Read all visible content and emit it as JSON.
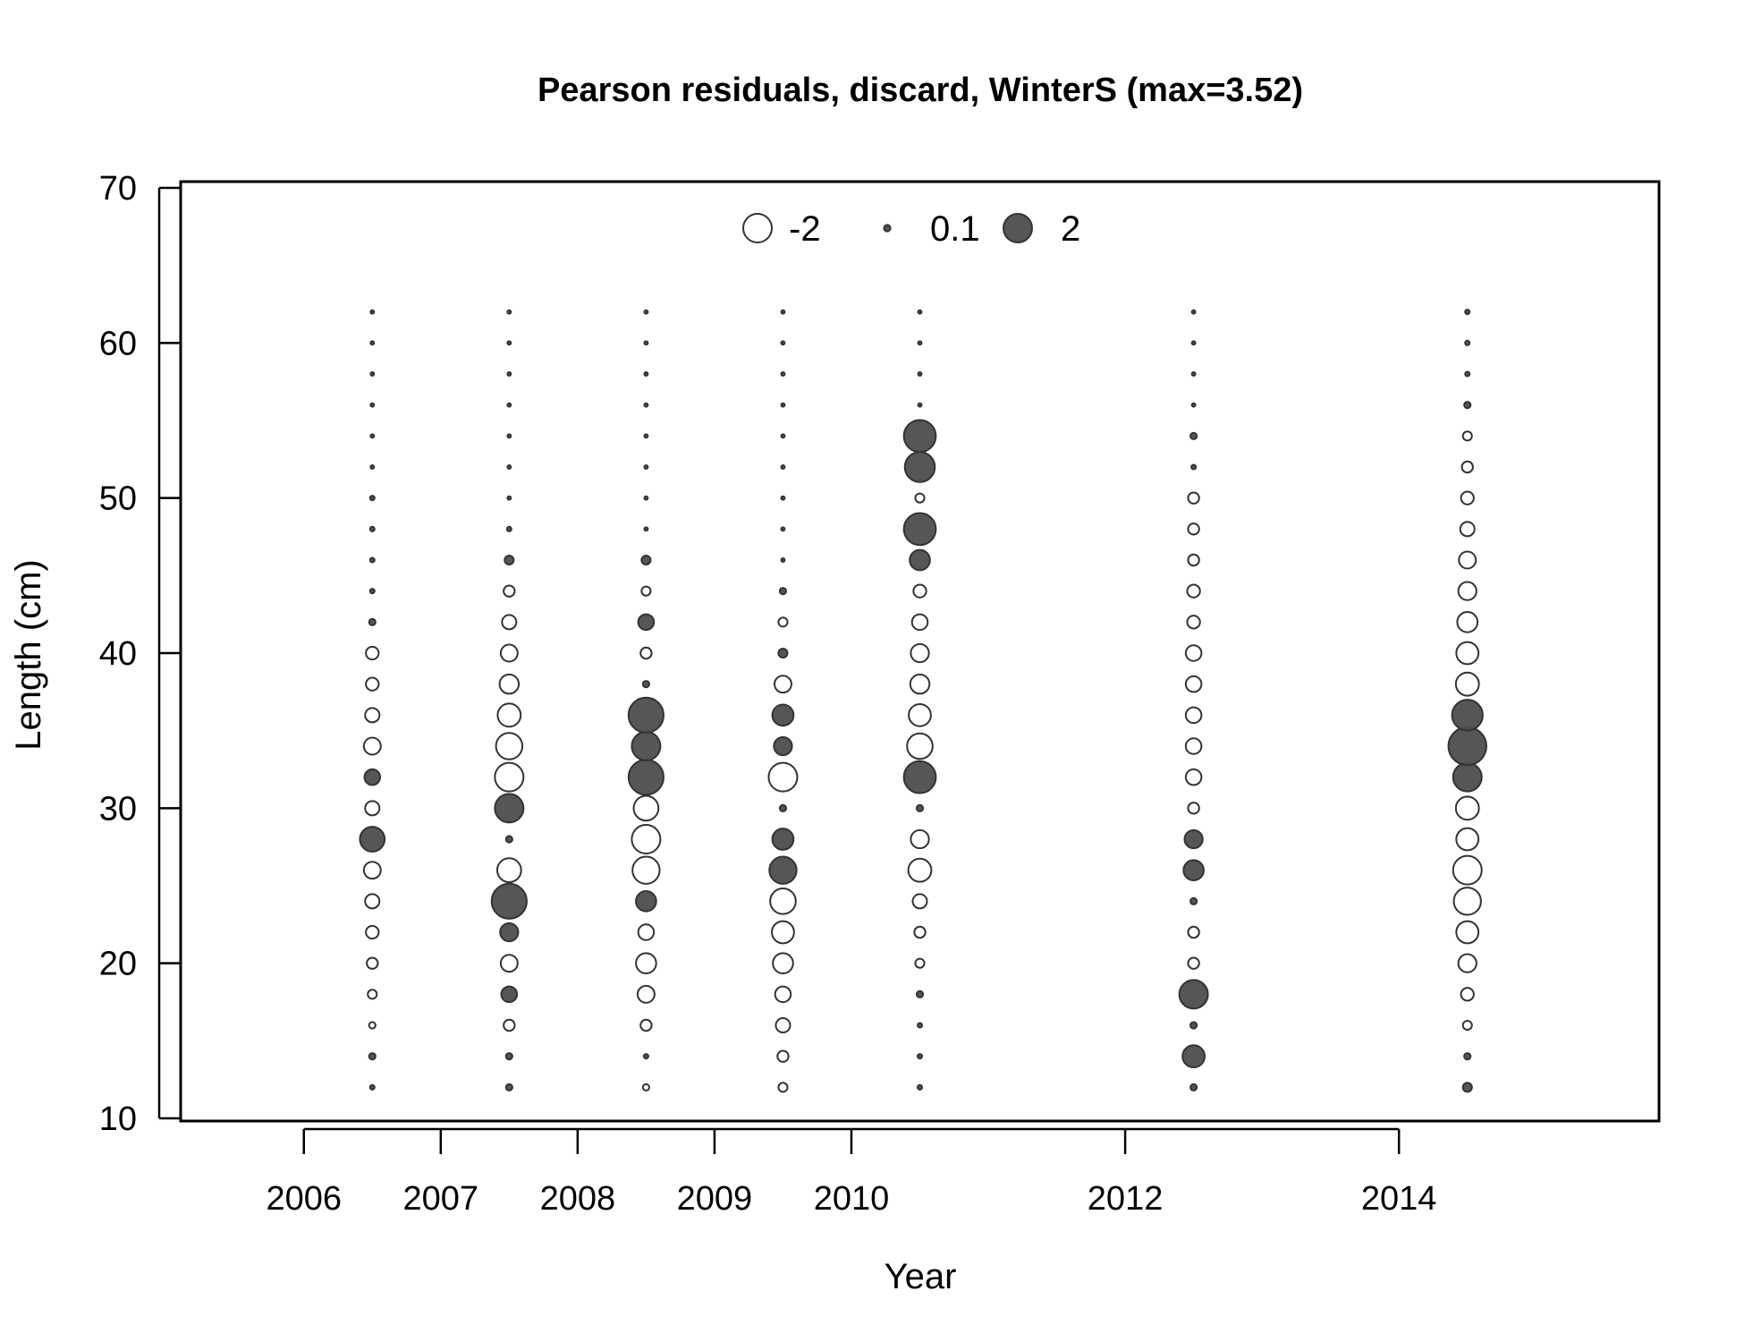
{
  "chart_data": {
    "type": "scatter",
    "title": "Pearson residuals, discard, WinterS (max=3.52)",
    "xlabel": "Year",
    "ylabel": "Length (cm)",
    "xlim": [
      2005.1,
      2015.9
    ],
    "ylim": [
      10,
      70
    ],
    "x_ticks": [
      2006,
      2007,
      2008,
      2009,
      2010,
      2012,
      2014
    ],
    "y_ticks": [
      10,
      20,
      30,
      40,
      50,
      60,
      70
    ],
    "legend": {
      "position": "top-center",
      "entries": [
        {
          "label": "-2",
          "value": -2
        },
        {
          "label": "0.1",
          "value": 0.1
        },
        {
          "label": "2",
          "value": 2
        }
      ]
    },
    "colors": {
      "positive": "#4d4d4d",
      "negative": "#ffffff",
      "stroke": "#333333"
    },
    "lengths": [
      12,
      14,
      16,
      18,
      20,
      22,
      24,
      26,
      28,
      30,
      32,
      34,
      36,
      38,
      40,
      42,
      44,
      46,
      48,
      50,
      52,
      54,
      56,
      58,
      60,
      62
    ],
    "series": [
      {
        "x": 2006.5,
        "residuals": [
          0.05,
          0.1,
          -0.1,
          -0.2,
          -0.3,
          -0.4,
          -0.5,
          -0.7,
          1.5,
          -0.5,
          0.6,
          -0.7,
          -0.5,
          -0.4,
          -0.4,
          0.1,
          0.05,
          0.05,
          0.05,
          0.05,
          0.03,
          0.03,
          0.03,
          0.03,
          0.03,
          0.03
        ]
      },
      {
        "x": 2007.5,
        "residuals": [
          0.1,
          0.1,
          -0.3,
          0.6,
          -0.7,
          0.8,
          3.0,
          -1.4,
          0.1,
          2.0,
          -2.0,
          -1.7,
          -1.3,
          -0.9,
          -0.7,
          -0.5,
          -0.3,
          0.2,
          0.05,
          0.03,
          0.03,
          0.03,
          0.03,
          0.03,
          0.03,
          0.03
        ]
      },
      {
        "x": 2008.5,
        "residuals": [
          -0.1,
          0.05,
          -0.3,
          -0.7,
          -1.0,
          -0.6,
          1.0,
          -1.8,
          -2.0,
          -1.5,
          3.0,
          2.0,
          3.0,
          0.1,
          -0.3,
          0.6,
          -0.2,
          0.2,
          0.03,
          0.03,
          0.03,
          0.03,
          0.03,
          0.03,
          0.03,
          0.03
        ]
      },
      {
        "x": 2009.5,
        "residuals": [
          -0.2,
          -0.3,
          -0.5,
          -0.6,
          -1.0,
          -1.2,
          -1.6,
          1.8,
          1.1,
          0.1,
          -2.0,
          0.8,
          1.1,
          -0.7,
          0.2,
          -0.2,
          0.1,
          0.03,
          0.03,
          0.03,
          0.03,
          0.03,
          0.03,
          0.03,
          0.03,
          0.03
        ]
      },
      {
        "x": 2010.5,
        "residuals": [
          0.05,
          0.05,
          0.05,
          0.1,
          -0.2,
          -0.3,
          -0.5,
          -1.3,
          -0.8,
          0.1,
          2.5,
          -1.6,
          -1.2,
          -0.9,
          -0.8,
          -0.6,
          -0.4,
          1.0,
          2.5,
          -0.2,
          2.2,
          2.5,
          0.03,
          0.03,
          0.03,
          0.03
        ]
      },
      {
        "x": 2012.5,
        "residuals": [
          0.1,
          1.2,
          0.1,
          2.0,
          -0.3,
          -0.3,
          0.1,
          1.0,
          0.8,
          -0.3,
          -0.6,
          -0.6,
          -0.6,
          -0.6,
          -0.6,
          -0.4,
          -0.4,
          -0.3,
          -0.3,
          -0.3,
          0.05,
          0.1,
          0.03,
          0.03,
          0.03,
          0.03
        ]
      },
      {
        "x": 2014.5,
        "residuals": [
          0.2,
          0.1,
          -0.2,
          -0.4,
          -0.8,
          -1.2,
          -1.8,
          -2.0,
          -1.2,
          -1.3,
          2.0,
          3.52,
          2.3,
          -1.3,
          -1.2,
          -1.0,
          -0.8,
          -0.7,
          -0.5,
          -0.4,
          -0.3,
          -0.2,
          0.1,
          0.05,
          0.05,
          0.05
        ]
      }
    ]
  }
}
